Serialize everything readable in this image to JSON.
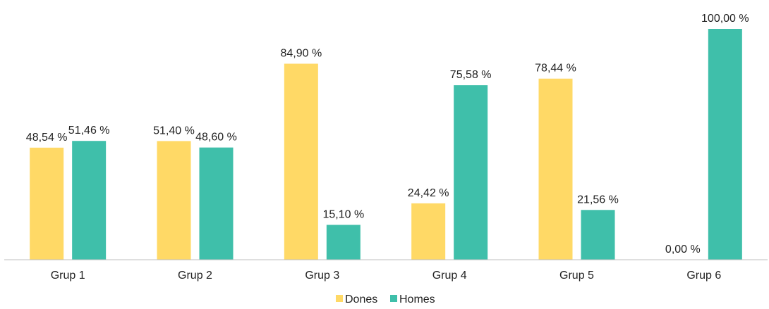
{
  "chart_data": {
    "type": "bar",
    "categories": [
      "Grup 1",
      "Grup 2",
      "Grup 3",
      "Grup 4",
      "Grup 5",
      "Grup 6"
    ],
    "series": [
      {
        "name": "Dones",
        "color": "#FFD966",
        "values": [
          48.54,
          51.4,
          84.9,
          24.42,
          78.44,
          0.0
        ],
        "labels": [
          "48,54 %",
          "51,40 %",
          "84,90 %",
          "24,42 %",
          "78,44 %",
          "0,00 %"
        ]
      },
      {
        "name": "Homes",
        "color": "#3FBFAA",
        "values": [
          51.46,
          48.6,
          15.1,
          75.58,
          21.56,
          100.0
        ],
        "labels": [
          "51,46 %",
          "48,60 %",
          "15,10 %",
          "75,58 %",
          "21,56 %",
          "100,00 %"
        ]
      }
    ],
    "ylim": [
      0,
      100
    ],
    "grid": false,
    "legend": "bottom-center"
  }
}
